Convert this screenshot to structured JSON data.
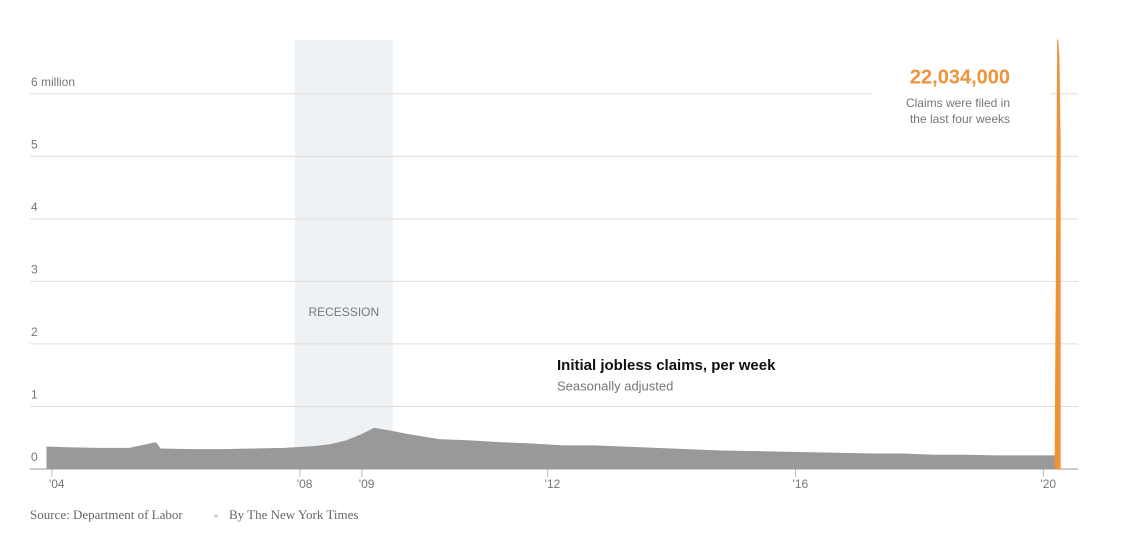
{
  "chart_data": {
    "type": "area",
    "title": "Initial jobless claims, per week",
    "subtitle": "Seasonally adjusted",
    "annotation": {
      "value": "22,034,000",
      "lines": [
        "Claims were filed in",
        "the last four weeks"
      ]
    },
    "recession": {
      "label": "RECESSION",
      "start": 2007.92,
      "end": 2009.5
    },
    "source": "Source: Department of Labor",
    "credit": "By The New York Times",
    "series": [
      {
        "color": "#999999",
        "x": [
          2003.92,
          2004.25,
          2004.75,
          2005.25,
          2005.67,
          2005.69,
          2005.75,
          2006.25,
          2006.75,
          2007.25,
          2007.75,
          2008.25,
          2008.5,
          2008.75,
          2009.0,
          2009.2,
          2009.5,
          2009.75,
          2010.25,
          2010.75,
          2011.25,
          2011.75,
          2012.25,
          2012.75,
          2013.25,
          2013.75,
          2014.25,
          2014.75,
          2015.25,
          2015.75,
          2016.25,
          2016.75,
          2017.25,
          2017.75,
          2018.25,
          2018.75,
          2019.25,
          2019.75,
          2020.19
        ],
        "values": [
          0.35,
          0.34,
          0.33,
          0.33,
          0.42,
          0.4,
          0.32,
          0.31,
          0.31,
          0.32,
          0.33,
          0.36,
          0.39,
          0.45,
          0.55,
          0.65,
          0.6,
          0.55,
          0.47,
          0.45,
          0.42,
          0.4,
          0.37,
          0.37,
          0.35,
          0.33,
          0.31,
          0.29,
          0.28,
          0.27,
          0.26,
          0.25,
          0.24,
          0.24,
          0.22,
          0.22,
          0.21,
          0.21,
          0.21
        ]
      },
      {
        "color": "#f0923a",
        "x": [
          2020.19,
          2020.21,
          2020.23,
          2020.25,
          2020.27
        ],
        "values": [
          0.28,
          3.307,
          6.867,
          6.615,
          5.245
        ]
      }
    ],
    "xlim": [
      2003.92,
      2020.3
    ],
    "xticks": [
      {
        "value": 2004,
        "label": "'04"
      },
      {
        "value": 2008,
        "label": "'08"
      },
      {
        "value": 2009,
        "label": "'09"
      },
      {
        "value": 2012,
        "label": "'12"
      },
      {
        "value": 2016,
        "label": "'16"
      },
      {
        "value": 2020,
        "label": "'20"
      }
    ],
    "ylim": [
      0,
      6.86
    ],
    "yticks": [
      0,
      1,
      2,
      3,
      4,
      5,
      {
        "value": 6,
        "label": "6 million"
      }
    ],
    "grid": true
  }
}
